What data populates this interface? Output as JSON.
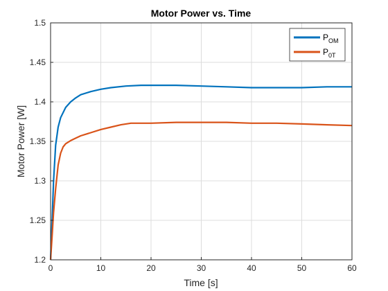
{
  "chart_data": {
    "type": "line",
    "title": "Motor Power vs. Time",
    "xlabel": "Time [s]",
    "ylabel": "Motor Power [W]",
    "xlim": [
      0,
      60
    ],
    "ylim": [
      1.2,
      1.5
    ],
    "xticks": [
      0,
      10,
      20,
      30,
      40,
      50,
      60
    ],
    "yticks": [
      1.2,
      1.25,
      1.3,
      1.35,
      1.4,
      1.45,
      1.5
    ],
    "xtick_labels": [
      "0",
      "10",
      "20",
      "30",
      "40",
      "50",
      "60"
    ],
    "ytick_labels": [
      "1.2",
      "1.25",
      "1.3",
      "1.35",
      "1.4",
      "1.45",
      "1.5"
    ],
    "grid": true,
    "legend_position": "top-right",
    "series": [
      {
        "name": "P_OM",
        "legend_main": "P",
        "legend_sub": "OM",
        "color": "#0072BD",
        "x": [
          0,
          0.3,
          0.6,
          1.0,
          1.5,
          2.0,
          3.0,
          4.0,
          5.0,
          6.0,
          8.0,
          10.0,
          12.0,
          15.0,
          18.0,
          20.0,
          25.0,
          30.0,
          35.0,
          40.0,
          45.0,
          50.0,
          55.0,
          60.0
        ],
        "y": [
          1.2,
          1.25,
          1.3,
          1.345,
          1.368,
          1.38,
          1.393,
          1.4,
          1.405,
          1.409,
          1.413,
          1.416,
          1.418,
          1.42,
          1.421,
          1.421,
          1.421,
          1.42,
          1.419,
          1.418,
          1.418,
          1.418,
          1.419,
          1.419
        ]
      },
      {
        "name": "P_0T",
        "legend_main": "P",
        "legend_sub": "0T",
        "color": "#D95319",
        "x": [
          0,
          0.3,
          0.6,
          1.0,
          1.5,
          2.0,
          2.5,
          3.0,
          4.0,
          5.0,
          6.0,
          8.0,
          10.0,
          12.0,
          14.0,
          16.0,
          18.0,
          20.0,
          25.0,
          30.0,
          35.0,
          40.0,
          45.0,
          50.0,
          55.0,
          60.0
        ],
        "y": [
          1.2,
          1.23,
          1.26,
          1.29,
          1.32,
          1.335,
          1.343,
          1.347,
          1.351,
          1.354,
          1.357,
          1.361,
          1.365,
          1.368,
          1.371,
          1.373,
          1.373,
          1.373,
          1.374,
          1.374,
          1.374,
          1.373,
          1.373,
          1.372,
          1.371,
          1.37
        ]
      }
    ]
  }
}
